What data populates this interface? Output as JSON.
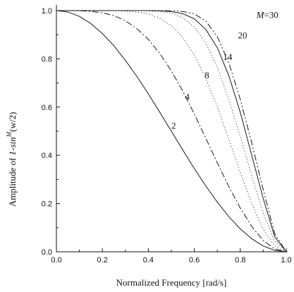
{
  "chart_data": {
    "type": "line",
    "xlabel": "Normalized Frequency [rad/s]",
    "ylabel": "Amplitude of 1-sin^M(w/2)",
    "ylabel_parts": {
      "pre": "Amplitude of ",
      "italic": "1-sin",
      "sup": "M",
      "post": "(w/2)"
    },
    "xlim": [
      0.0,
      1.0
    ],
    "ylim": [
      0.0,
      1.0
    ],
    "xticks": [
      "0.0",
      "0.2",
      "0.4",
      "0.6",
      "0.8",
      "1.0"
    ],
    "yticks": [
      "0.0",
      "0.2",
      "0.4",
      "0.6",
      "0.8",
      "1.0"
    ],
    "grid": false,
    "legend": "none",
    "x": [
      0.0,
      0.05,
      0.1,
      0.15,
      0.2,
      0.25,
      0.3,
      0.35,
      0.4,
      0.45,
      0.5,
      0.55,
      0.6,
      0.65,
      0.7,
      0.75,
      0.8,
      0.85,
      0.9,
      0.95,
      1.0
    ],
    "series": [
      {
        "label": "2",
        "style": "solid",
        "values": [
          1.0,
          0.994,
          0.976,
          0.946,
          0.905,
          0.854,
          0.794,
          0.727,
          0.655,
          0.578,
          0.5,
          0.422,
          0.345,
          0.273,
          0.206,
          0.146,
          0.095,
          0.054,
          0.024,
          0.006,
          0.0
        ]
      },
      {
        "label": "4",
        "style": "dashdot",
        "values": [
          1.0,
          1.0,
          0.9994,
          0.997,
          0.991,
          0.979,
          0.958,
          0.925,
          0.881,
          0.822,
          0.75,
          0.666,
          0.571,
          0.471,
          0.369,
          0.271,
          0.181,
          0.105,
          0.047,
          0.012,
          0.0
        ]
      },
      {
        "label": "8",
        "style": "dotted",
        "values": [
          1.0,
          1.0,
          1.0,
          1.0,
          1.0,
          1.0,
          0.998,
          0.994,
          0.986,
          0.968,
          0.938,
          0.889,
          0.816,
          0.719,
          0.601,
          0.468,
          0.329,
          0.199,
          0.093,
          0.024,
          0.0
        ]
      },
      {
        "label": "14",
        "style": "dotted",
        "values": [
          1.0,
          1.0,
          1.0,
          1.0,
          1.0,
          1.0,
          1.0,
          1.0,
          0.999,
          0.996,
          0.989,
          0.97,
          0.932,
          0.865,
          0.765,
          0.632,
          0.478,
          0.315,
          0.16,
          0.043,
          0.0
        ]
      },
      {
        "label": "20",
        "style": "solid",
        "values": [
          1.0,
          1.0,
          1.0,
          1.0,
          1.0,
          1.0,
          1.0,
          1.0,
          1.0,
          0.999,
          0.996,
          0.987,
          0.966,
          0.922,
          0.846,
          0.731,
          0.578,
          0.4,
          0.22,
          0.062,
          0.0
        ]
      },
      {
        "label": "M=30",
        "style": "dashdotdot",
        "values": [
          1.0,
          1.0,
          1.0,
          1.0,
          1.0,
          1.0,
          1.0,
          1.0,
          1.0,
          1.0,
          0.999,
          0.996,
          0.986,
          0.957,
          0.892,
          0.784,
          0.632,
          0.451,
          0.257,
          0.075,
          0.0
        ]
      }
    ],
    "curve_labels": [
      {
        "series": "2",
        "text": "2",
        "x": 0.5,
        "y": 0.51
      },
      {
        "series": "4",
        "text": "4",
        "x": 0.56,
        "y": 0.63
      },
      {
        "series": "8",
        "text": "8",
        "x": 0.645,
        "y": 0.72
      },
      {
        "series": "14",
        "text": "14",
        "x": 0.725,
        "y": 0.795
      },
      {
        "series": "20",
        "text": "20",
        "x": 0.79,
        "y": 0.885
      },
      {
        "series": "M=30",
        "text": "=30",
        "italic_prefix": "M",
        "x": 0.87,
        "y": 0.97
      }
    ]
  }
}
